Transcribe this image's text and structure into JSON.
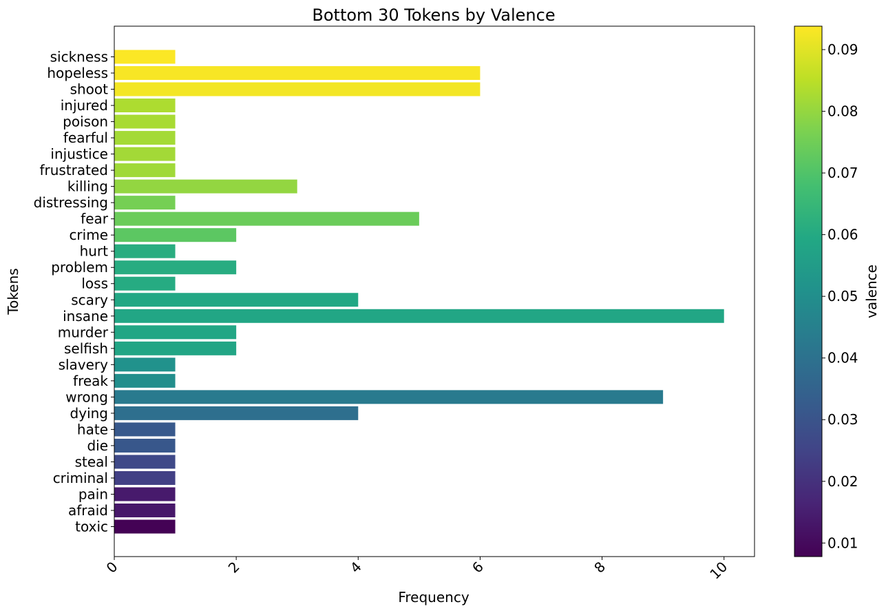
{
  "chart_data": {
    "type": "bar",
    "orientation": "horizontal",
    "title": "Bottom 30 Tokens by Valence",
    "xlabel": "Frequency",
    "ylabel": "Tokens",
    "xlim": [
      0,
      10.5
    ],
    "xticks": [
      0,
      2,
      4,
      6,
      8,
      10
    ],
    "xtick_labels": [
      "0",
      "2",
      "4",
      "6",
      "8",
      "10"
    ],
    "grid": false,
    "categories": [
      "sickness",
      "hopeless",
      "shoot",
      "injured",
      "poison",
      "fearful",
      "injustice",
      "frustrated",
      "killing",
      "distressing",
      "fear",
      "crime",
      "hurt",
      "problem",
      "loss",
      "scary",
      "insane",
      "murder",
      "selfish",
      "slavery",
      "freak",
      "wrong",
      "dying",
      "hate",
      "die",
      "steal",
      "criminal",
      "pain",
      "afraid",
      "toxic"
    ],
    "values": [
      1,
      6,
      6,
      1,
      1,
      1,
      1,
      1,
      3,
      1,
      5,
      2,
      1,
      2,
      1,
      4,
      10,
      2,
      2,
      1,
      1,
      9,
      4,
      1,
      1,
      1,
      1,
      1,
      1,
      1
    ],
    "valence": [
      0.0935,
      0.093,
      0.0925,
      0.0832,
      0.0825,
      0.082,
      0.0818,
      0.0815,
      0.0798,
      0.0758,
      0.0742,
      0.0718,
      0.0612,
      0.0608,
      0.0604,
      0.059,
      0.0588,
      0.0585,
      0.0582,
      0.0512,
      0.0498,
      0.043,
      0.0392,
      0.0318,
      0.0312,
      0.0265,
      0.024,
      0.014,
      0.0135,
      0.008
    ],
    "colorbar": {
      "label": "valence",
      "colormap": "viridis",
      "range": [
        0.0078,
        0.0938
      ],
      "ticks": [
        0.01,
        0.02,
        0.03,
        0.04,
        0.05,
        0.06,
        0.07,
        0.08,
        0.09
      ],
      "tick_labels": [
        "0.01",
        "0.02",
        "0.03",
        "0.04",
        "0.05",
        "0.06",
        "0.07",
        "0.08",
        "0.09"
      ]
    }
  }
}
